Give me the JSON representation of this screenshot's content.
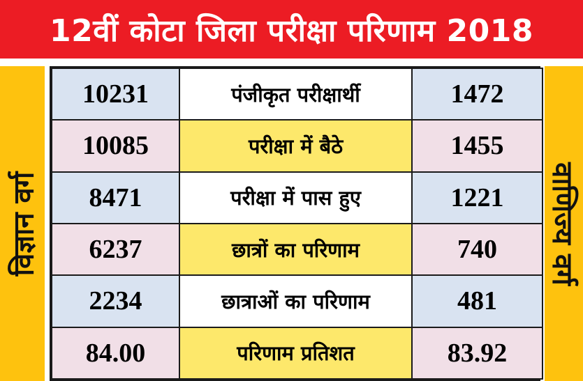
{
  "banner": {
    "title": "12वीं कोटा जिला परीक्षा परिणाम 2018"
  },
  "side_labels": {
    "left": "विज्ञान वर्ग",
    "right": "वाणिज्य वर्ग"
  },
  "colors": {
    "banner": "#ec1c24",
    "side": "#fec20e",
    "label_highlight": "#fde86b",
    "row_blue": "#d9e3f1",
    "row_pink": "#f1dfe7"
  },
  "rows": [
    {
      "science": "10231",
      "label": "पंजीकृत परीक्षार्थी",
      "commerce": "1472"
    },
    {
      "science": "10085",
      "label": "परीक्षा में बैठे",
      "commerce": "1455"
    },
    {
      "science": "8471",
      "label": "परीक्षा में पास हुए",
      "commerce": "1221"
    },
    {
      "science": "6237",
      "label": "छात्रों का परिणाम",
      "commerce": "740"
    },
    {
      "science": "2234",
      "label": "छात्राओं का परिणाम",
      "commerce": "481"
    },
    {
      "science": "84.00",
      "label": "परिणाम प्रतिशत",
      "commerce": "83.92"
    }
  ]
}
